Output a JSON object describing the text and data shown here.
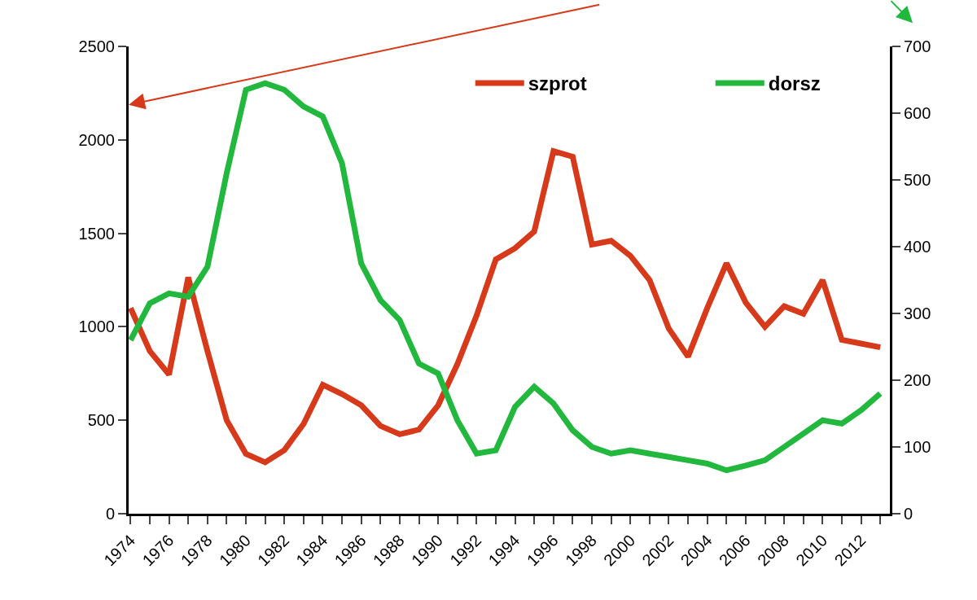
{
  "chart_data": {
    "type": "line",
    "x": [
      1974,
      1975,
      1976,
      1977,
      1978,
      1979,
      1980,
      1981,
      1982,
      1983,
      1984,
      1985,
      1986,
      1987,
      1988,
      1989,
      1990,
      1991,
      1992,
      1993,
      1994,
      1995,
      1996,
      1997,
      1998,
      1999,
      2000,
      2001,
      2002,
      2003,
      2004,
      2005,
      2006,
      2007,
      2008,
      2009,
      2010,
      2011,
      2012,
      2013
    ],
    "series": [
      {
        "name": "szprot",
        "color": "#d63a1a",
        "values": [
          1100,
          870,
          745,
          1265,
          870,
          500,
          320,
          275,
          340,
          480,
          690,
          640,
          580,
          470,
          425,
          450,
          580,
          800,
          1060,
          1360,
          1420,
          1510,
          1940,
          1910,
          1440,
          1460,
          1380,
          1250,
          990,
          840,
          1100,
          1340,
          1130,
          1000,
          1110,
          1070,
          1250,
          930,
          910,
          890
        ]
      },
      {
        "name": "dorsz",
        "color": "#22b83e",
        "axis": "y2",
        "values": [
          260,
          315,
          330,
          325,
          370,
          510,
          635,
          645,
          635,
          610,
          595,
          525,
          375,
          320,
          290,
          225,
          210,
          140,
          90,
          95,
          160,
          190,
          165,
          125,
          100,
          90,
          95,
          90,
          85,
          80,
          75,
          65,
          72,
          80,
          100,
          120,
          140,
          135,
          155,
          180
        ]
      }
    ],
    "xlim": [
      1973.9,
      2013.5
    ],
    "xticks": [
      1974,
      {
        "value": 1975,
        "label": null
      },
      1976,
      {
        "value": 1977,
        "label": null
      },
      1978,
      {
        "value": 1979,
        "label": null
      },
      1980,
      {
        "value": 1981,
        "label": null
      },
      1982,
      {
        "value": 1983,
        "label": null
      },
      1984,
      {
        "value": 1985,
        "label": null
      },
      1986,
      {
        "value": 1987,
        "label": null
      },
      1988,
      {
        "value": 1989,
        "label": null
      },
      1990,
      {
        "value": 1991,
        "label": null
      },
      1992,
      {
        "value": 1993,
        "label": null
      },
      1994,
      {
        "value": 1995,
        "label": null
      },
      1996,
      {
        "value": 1997,
        "label": null
      },
      1998,
      {
        "value": 1999,
        "label": null
      },
      2000,
      {
        "value": 2001,
        "label": null
      },
      2002,
      {
        "value": 2003,
        "label": null
      },
      2004,
      {
        "value": 2005,
        "label": null
      },
      2006,
      {
        "value": 2007,
        "label": null
      },
      2008,
      {
        "value": 2009,
        "label": null
      },
      2010,
      {
        "value": 2011,
        "label": null
      },
      2012,
      {
        "value": 2013,
        "label": null
      }
    ],
    "ylim": [
      0,
      2500
    ],
    "yticks": [
      0,
      500,
      1000,
      1500,
      2000,
      2500
    ],
    "y2lim": [
      0,
      700
    ],
    "y2ticks": [
      0,
      100,
      200,
      300,
      400,
      500,
      600,
      700
    ],
    "grid": false,
    "legend": "top",
    "marker": "none",
    "line_style": "solid"
  }
}
